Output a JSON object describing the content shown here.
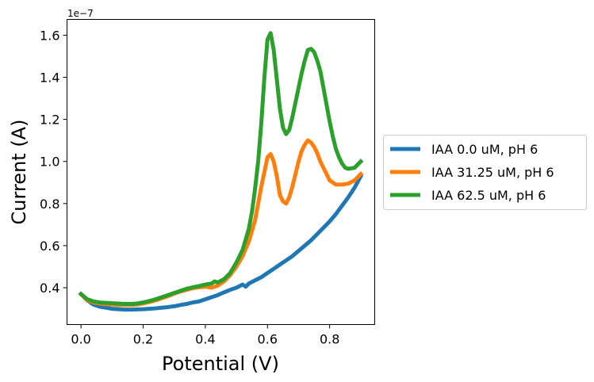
{
  "chart_data": {
    "type": "line",
    "xlabel": "Potential (V)",
    "ylabel": "Current (A)",
    "y_offset_label": "1e−7",
    "xlim": [
      -0.045,
      0.945
    ],
    "ylim": [
      0.225,
      1.675
    ],
    "x_ticks": [
      0.0,
      0.2,
      0.4,
      0.6,
      0.8
    ],
    "x_tick_labels": [
      "0.0",
      "0.2",
      "0.4",
      "0.6",
      "0.8"
    ],
    "y_ticks": [
      0.4,
      0.6,
      0.8,
      1.0,
      1.2,
      1.4,
      1.6
    ],
    "y_tick_labels": [
      "0.4",
      "0.6",
      "0.8",
      "1.0",
      "1.2",
      "1.4",
      "1.6"
    ],
    "grid": false,
    "legend_position": "right-outside",
    "series": [
      {
        "name": "IAA 0.0 uM, pH 6",
        "color": "#1f77b4",
        "x": [
          0.0,
          0.02,
          0.04,
          0.06,
          0.08,
          0.1,
          0.12,
          0.14,
          0.16,
          0.18,
          0.2,
          0.22,
          0.24,
          0.26,
          0.28,
          0.3,
          0.32,
          0.34,
          0.36,
          0.38,
          0.4,
          0.42,
          0.44,
          0.46,
          0.48,
          0.5,
          0.52,
          0.53,
          0.54,
          0.56,
          0.58,
          0.6,
          0.62,
          0.64,
          0.66,
          0.68,
          0.7,
          0.72,
          0.74,
          0.76,
          0.78,
          0.8,
          0.82,
          0.84,
          0.86,
          0.88,
          0.9
        ],
        "y": [
          0.37,
          0.34,
          0.32,
          0.31,
          0.305,
          0.3,
          0.298,
          0.296,
          0.296,
          0.297,
          0.298,
          0.3,
          0.302,
          0.305,
          0.308,
          0.312,
          0.318,
          0.323,
          0.33,
          0.335,
          0.345,
          0.355,
          0.365,
          0.378,
          0.39,
          0.4,
          0.415,
          0.405,
          0.42,
          0.435,
          0.45,
          0.47,
          0.49,
          0.51,
          0.53,
          0.55,
          0.575,
          0.6,
          0.625,
          0.655,
          0.685,
          0.715,
          0.75,
          0.79,
          0.83,
          0.875,
          0.93
        ]
      },
      {
        "name": "IAA 31.25 uM, pH 6",
        "color": "#ff7f0e",
        "x": [
          0.0,
          0.02,
          0.04,
          0.06,
          0.08,
          0.1,
          0.12,
          0.14,
          0.16,
          0.18,
          0.2,
          0.22,
          0.24,
          0.26,
          0.28,
          0.3,
          0.32,
          0.34,
          0.36,
          0.38,
          0.4,
          0.42,
          0.44,
          0.46,
          0.48,
          0.5,
          0.52,
          0.54,
          0.56,
          0.57,
          0.58,
          0.59,
          0.6,
          0.61,
          0.62,
          0.63,
          0.64,
          0.65,
          0.66,
          0.67,
          0.68,
          0.69,
          0.7,
          0.71,
          0.72,
          0.73,
          0.74,
          0.75,
          0.76,
          0.77,
          0.78,
          0.79,
          0.8,
          0.82,
          0.84,
          0.86,
          0.88,
          0.9
        ],
        "y": [
          0.37,
          0.34,
          0.33,
          0.325,
          0.322,
          0.32,
          0.318,
          0.318,
          0.318,
          0.32,
          0.325,
          0.332,
          0.34,
          0.35,
          0.36,
          0.372,
          0.382,
          0.39,
          0.398,
          0.402,
          0.405,
          0.4,
          0.41,
          0.43,
          0.46,
          0.5,
          0.55,
          0.62,
          0.72,
          0.8,
          0.88,
          0.95,
          1.02,
          1.035,
          1.0,
          0.93,
          0.84,
          0.81,
          0.8,
          0.83,
          0.88,
          0.94,
          1.0,
          1.05,
          1.08,
          1.1,
          1.09,
          1.07,
          1.04,
          1.0,
          0.97,
          0.94,
          0.91,
          0.89,
          0.89,
          0.895,
          0.91,
          0.94
        ]
      },
      {
        "name": "IAA 62.5 uM, pH 6",
        "color": "#2ca02c",
        "x": [
          0.0,
          0.02,
          0.04,
          0.06,
          0.08,
          0.1,
          0.12,
          0.14,
          0.16,
          0.18,
          0.2,
          0.22,
          0.24,
          0.26,
          0.28,
          0.3,
          0.32,
          0.34,
          0.36,
          0.38,
          0.4,
          0.42,
          0.43,
          0.44,
          0.46,
          0.48,
          0.5,
          0.52,
          0.54,
          0.55,
          0.56,
          0.57,
          0.58,
          0.59,
          0.6,
          0.61,
          0.62,
          0.63,
          0.64,
          0.65,
          0.66,
          0.67,
          0.68,
          0.69,
          0.7,
          0.71,
          0.72,
          0.73,
          0.74,
          0.75,
          0.76,
          0.77,
          0.78,
          0.79,
          0.8,
          0.81,
          0.82,
          0.83,
          0.84,
          0.85,
          0.86,
          0.88,
          0.89,
          0.9
        ],
        "y": [
          0.37,
          0.345,
          0.335,
          0.33,
          0.328,
          0.326,
          0.325,
          0.323,
          0.323,
          0.325,
          0.33,
          0.337,
          0.345,
          0.355,
          0.365,
          0.375,
          0.385,
          0.395,
          0.402,
          0.408,
          0.415,
          0.42,
          0.43,
          0.425,
          0.44,
          0.47,
          0.52,
          0.58,
          0.68,
          0.76,
          0.87,
          1.0,
          1.18,
          1.4,
          1.58,
          1.61,
          1.53,
          1.39,
          1.25,
          1.16,
          1.13,
          1.15,
          1.21,
          1.28,
          1.35,
          1.42,
          1.48,
          1.53,
          1.535,
          1.52,
          1.48,
          1.43,
          1.35,
          1.27,
          1.19,
          1.12,
          1.06,
          1.02,
          0.99,
          0.97,
          0.965,
          0.97,
          0.985,
          1.0
        ]
      }
    ]
  }
}
